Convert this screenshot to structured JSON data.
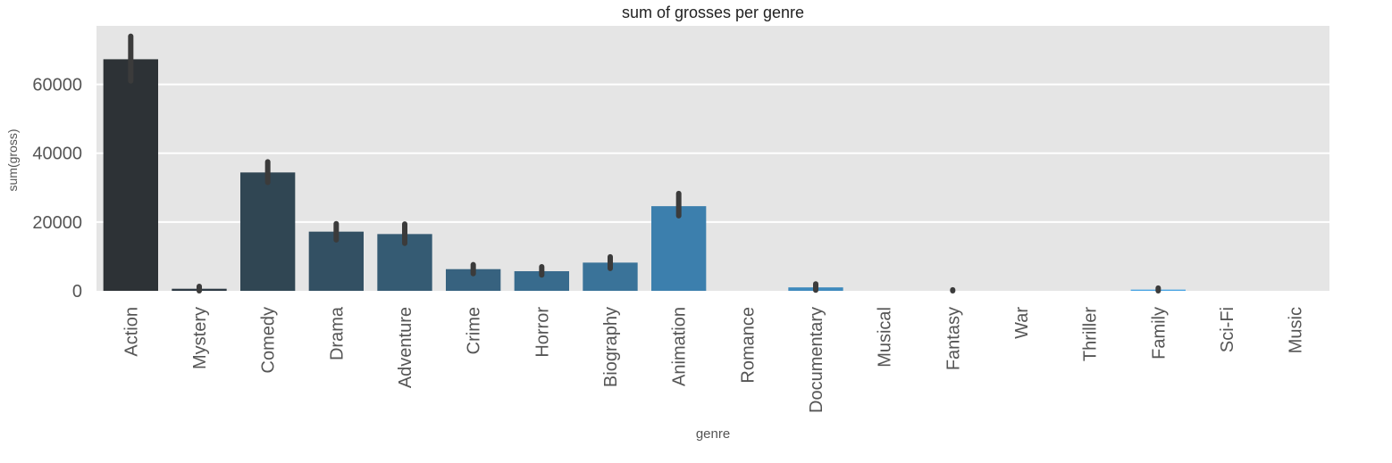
{
  "chart_data": {
    "type": "bar",
    "title": "sum of grosses per genre",
    "xlabel": "genre",
    "ylabel": "sum(gross)",
    "categories": [
      "Action",
      "Mystery",
      "Comedy",
      "Drama",
      "Adventure",
      "Crime",
      "Horror",
      "Biography",
      "Animation",
      "Romance",
      "Documentary",
      "Musical",
      "Fantasy",
      "War",
      "Thriller",
      "Family",
      "Sci-Fi",
      "Music"
    ],
    "values": [
      67300,
      600,
      34400,
      17200,
      16500,
      6300,
      5700,
      8200,
      24600,
      0,
      1000,
      0,
      0,
      0,
      0,
      350,
      0,
      0
    ],
    "error_bars": [
      [
        61000,
        74000
      ],
      [
        0,
        1300
      ],
      [
        31500,
        37500
      ],
      [
        14800,
        19500
      ],
      [
        13800,
        19400
      ],
      [
        5000,
        7600
      ],
      [
        4600,
        7000
      ],
      [
        6500,
        9900
      ],
      [
        21800,
        28300
      ],
      null,
      [
        200,
        2000
      ],
      null,
      [
        0,
        300
      ],
      null,
      null,
      [
        0,
        800
      ],
      null,
      null
    ],
    "bar_colors": [
      "#2d3236",
      "#2e3a44",
      "#304653",
      "#335063",
      "#355b73",
      "#37627f",
      "#386b8d",
      "#3a7399",
      "#3c7fad",
      "#3d84b4",
      "#3f8abd",
      "#4190c6",
      "#4294cd",
      "#4399d4",
      "#459ddb",
      "#47a3e3",
      "#48a7e9",
      "#4aacef"
    ],
    "ylim": [
      0,
      77000
    ],
    "yticks": [
      0,
      20000,
      40000,
      60000
    ],
    "grid": true,
    "colors": {
      "plot_background": "#e5e5e5",
      "grid": "#ffffff",
      "error_bar": "#3b3b3b",
      "text": "#555555",
      "title_text": "#222222"
    }
  }
}
